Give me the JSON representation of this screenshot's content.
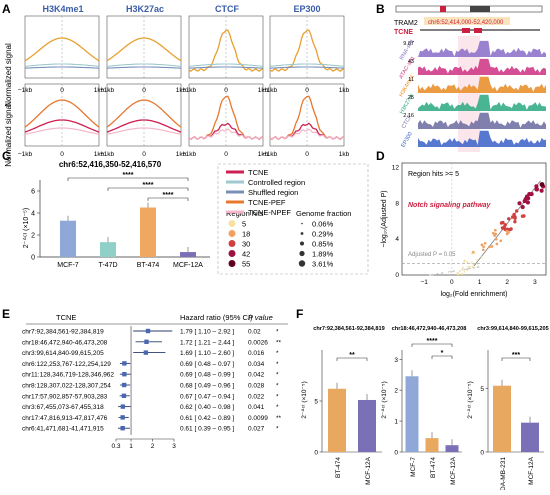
{
  "panel_labels": [
    "A",
    "B",
    "C",
    "D",
    "E",
    "F"
  ],
  "panelA": {
    "titles": [
      "H3K4me1",
      "H3K27ac",
      "CTCF",
      "EP300"
    ],
    "ylabel": "Normalized signal",
    "xticks": [
      "−1kb",
      "0",
      "1kb"
    ],
    "colors": {
      "tcne": "#e8a030",
      "ctrl": "#9fc9cc",
      "shuf": "#7a8fb8",
      "pef": "#e87830",
      "npef": "#f4b6c8",
      "red": "#cc2050"
    }
  },
  "panelB": {
    "gene": "TRAM2",
    "region": "chr6:52,414,000-52,420,000",
    "tcne_label": "TCNE",
    "tracks": [
      {
        "name": "RNA-seq",
        "scale": "9.87",
        "color": "#8a6cc8"
      },
      {
        "name": "ATAC-seq",
        "scale": "43",
        "color": "#cc3080"
      },
      {
        "name": "H3K4me1",
        "scale": "11",
        "color": "#e88a20"
      },
      {
        "name": "H3K27ac",
        "scale": "25",
        "color": "#2aa880"
      },
      {
        "name": "CTCF",
        "scale": "2.16",
        "color": "#6a6aa0"
      },
      {
        "name": "EP300",
        "scale": "",
        "color": "#3a60c8"
      }
    ]
  },
  "panelC": {
    "title": "chr6:52,416,350-52,416,570",
    "ylabel": "2⁻ᐞᶜᵗ (×10⁻⁵)",
    "sig": [
      "****",
      "****",
      "****"
    ],
    "chart_data": {
      "type": "bar",
      "categories": [
        "MCF-7",
        "T-47D",
        "BT-474",
        "MCF-12A"
      ],
      "values": [
        3.3,
        1.35,
        4.5,
        0.45
      ],
      "ylim": [
        0,
        7
      ],
      "yticks": [
        "0",
        "2",
        "4",
        "6"
      ],
      "colors": [
        "#8fa8d8",
        "#8fd0c8",
        "#f0a860",
        "#7a70b8"
      ]
    }
  },
  "legend": {
    "items": [
      {
        "label": "TCNE",
        "color": "#cc2050"
      },
      {
        "label": "Controlled region",
        "color": "#9fc9cc"
      },
      {
        "label": "Shuffled region",
        "color": "#7a8fb8"
      },
      {
        "label": "TCNE-PEF",
        "color": "#e87830"
      },
      {
        "label": "TCNE-NPEF",
        "color": "#f4b6c8"
      }
    ],
    "hits_title": "Region hits",
    "hits": [
      "5",
      "18",
      "30",
      "42",
      "55"
    ],
    "hits_colors": [
      "#f8e0a0",
      "#f0a060",
      "#d04040",
      "#a01040",
      "#600020"
    ],
    "frac_title": "Genome fraction",
    "fracs": [
      "0.06%",
      "0.29%",
      "0.85%",
      "1.89%",
      "3.61%"
    ]
  },
  "panelD": {
    "annotation": "Region hits >= 5",
    "pathway": "Notch signaling pathway",
    "threshold": "Adjusted P = 0.05",
    "xlabel": "log₂(Fold enrichment)",
    "ylabel": "−log₁₀(Adjusted P)",
    "xticks": [
      "−1",
      "0",
      "1",
      "2",
      "3"
    ],
    "yticks": [
      "0",
      "4",
      "8",
      "12"
    ]
  },
  "panelE": {
    "headers": {
      "tcne": "TCNE",
      "hr": "Hazard ratio (95% CI)",
      "p": "P value"
    },
    "rows": [
      {
        "name": "chr7:92,384,561-92,384,819",
        "hr": "1.79 [ 1.10 – 2.92 ]",
        "p": "0.02",
        "sig": "*",
        "est": 1.79,
        "lo": 1.1,
        "hi": 2.92
      },
      {
        "name": "chr18:46,472,940-46,473,208",
        "hr": "1.72 [ 1.21 – 2.44 ]",
        "p": "0.0026",
        "sig": "**",
        "est": 1.72,
        "lo": 1.21,
        "hi": 2.44
      },
      {
        "name": "chr3:99,614,840-99,615,205",
        "hr": "1.69 [ 1.10 – 2.60 ]",
        "p": "0.016",
        "sig": "*",
        "est": 1.69,
        "lo": 1.1,
        "hi": 2.6
      },
      {
        "name": "chr6:122,253,767-122,254,129",
        "hr": "0.69 [ 0.48 – 0.97 ]",
        "p": "0.034",
        "sig": "*",
        "est": 0.69,
        "lo": 0.48,
        "hi": 0.97
      },
      {
        "name": "chr11:128,346,719-128,346,962",
        "hr": "0.69 [ 0.48 – 0.99 ]",
        "p": "0.042",
        "sig": "*",
        "est": 0.69,
        "lo": 0.48,
        "hi": 0.99
      },
      {
        "name": "chr8:128,307,022-128,307,254",
        "hr": "0.68 [ 0.49 – 0.96 ]",
        "p": "0.028",
        "sig": "*",
        "est": 0.68,
        "lo": 0.49,
        "hi": 0.96
      },
      {
        "name": "chr17:57,902,857-57,903,283",
        "hr": "0.67 [ 0.47 – 0.94 ]",
        "p": "0.022",
        "sig": "*",
        "est": 0.67,
        "lo": 0.47,
        "hi": 0.94
      },
      {
        "name": "chr3:67,455,073-67,455,318",
        "hr": "0.62 [ 0.40 – 0.98 ]",
        "p": "0.041",
        "sig": "*",
        "est": 0.62,
        "lo": 0.4,
        "hi": 0.98
      },
      {
        "name": "chr17:47,816,913-47,817,476",
        "hr": "0.61 [ 0.42 – 0.89 ]",
        "p": "0.0099",
        "sig": "**",
        "est": 0.61,
        "lo": 0.42,
        "hi": 0.89
      },
      {
        "name": "chr6:41,471,681-41,471,915",
        "hr": "0.61 [ 0.39 – 0.95 ]",
        "p": "0.027",
        "sig": "*",
        "est": 0.61,
        "lo": 0.39,
        "hi": 0.95
      }
    ],
    "xticks": [
      "0.3",
      "1",
      "2",
      "3"
    ]
  },
  "panelF": {
    "ylabel": "2⁻ᐞᶜᵗ (×10⁻⁵)",
    "charts": [
      {
        "title": "chr7:92,384,561-92,384,819",
        "categories": [
          "BT-474",
          "MCF-12A"
        ],
        "values": [
          6.2,
          5.1
        ],
        "ymax": 10,
        "yticks": [
          "0",
          "5"
        ],
        "sig": "**",
        "colors": [
          "#e8a860",
          "#7a70b8"
        ]
      },
      {
        "title": "chr18:46,472,940-46,473,208",
        "categories": [
          "MCF-7",
          "BT-474",
          "MCF-12A"
        ],
        "values": [
          2.45,
          0.45,
          0.22
        ],
        "ymax": 3.3,
        "yticks": [
          "0",
          "1",
          "2",
          "3"
        ],
        "sig": [
          "****",
          "*"
        ],
        "colors": [
          "#8fa8d8",
          "#e8a860",
          "#7a70b8"
        ]
      },
      {
        "title": "chr3:99,614,840-99,615,205",
        "categories": [
          "MDA-MB-231",
          "MCF-12A"
        ],
        "values": [
          5.2,
          2.3
        ],
        "ymax": 8,
        "yticks": [
          "0",
          "5"
        ],
        "sig": "***",
        "colors": [
          "#e8a860",
          "#7a70b8"
        ]
      }
    ]
  }
}
